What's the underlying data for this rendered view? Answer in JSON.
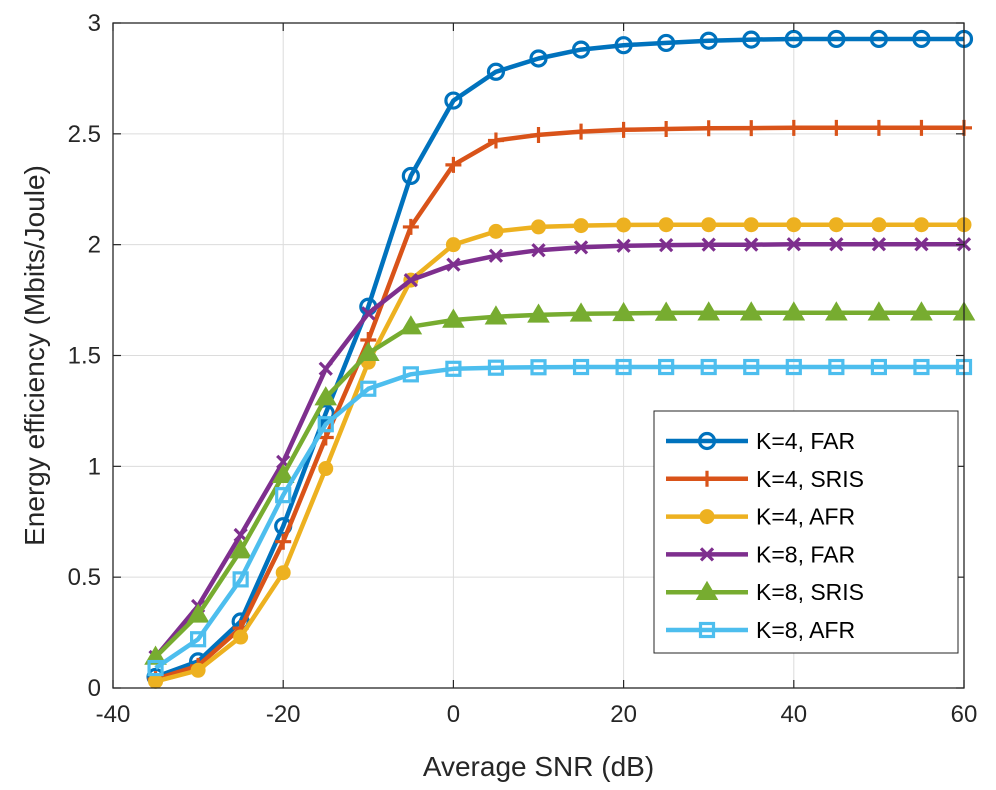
{
  "chart_data": {
    "type": "line",
    "title": "",
    "xlabel": "Average SNR (dB)",
    "ylabel": "Energy efficiency (Mbits/Joule)",
    "xlim": [
      -40,
      60
    ],
    "ylim": [
      0,
      3
    ],
    "xticks": [
      -40,
      -20,
      0,
      20,
      40,
      60
    ],
    "yticks": [
      0,
      0.5,
      1,
      1.5,
      2,
      2.5,
      3
    ],
    "ytick_labels": [
      "0",
      "0.5",
      "1",
      "1.5",
      "2",
      "2.5",
      "3"
    ],
    "grid": true,
    "legend_position": "lower-right",
    "x": [
      -35,
      -30,
      -25,
      -20,
      -15,
      -10,
      -5,
      0,
      5,
      10,
      15,
      20,
      25,
      30,
      35,
      40,
      45,
      50,
      55,
      60
    ],
    "series": [
      {
        "name": "K=4, FAR",
        "color": "#0072BD",
        "marker": "circle",
        "values": [
          0.05,
          0.12,
          0.3,
          0.73,
          1.24,
          1.72,
          2.31,
          2.65,
          2.78,
          2.84,
          2.88,
          2.9,
          2.91,
          2.92,
          2.925,
          2.928,
          2.928,
          2.928,
          2.928,
          2.928
        ]
      },
      {
        "name": "K=4, SRIS",
        "color": "#D95319",
        "marker": "plus",
        "values": [
          0.04,
          0.1,
          0.27,
          0.66,
          1.13,
          1.57,
          2.08,
          2.36,
          2.47,
          2.495,
          2.51,
          2.518,
          2.522,
          2.525,
          2.526,
          2.527,
          2.527,
          2.527,
          2.527,
          2.527
        ]
      },
      {
        "name": "K=4, AFR",
        "color": "#EDB120",
        "marker": "dot",
        "values": [
          0.03,
          0.08,
          0.23,
          0.52,
          0.99,
          1.47,
          1.84,
          2.0,
          2.06,
          2.08,
          2.086,
          2.089,
          2.09,
          2.09,
          2.09,
          2.09,
          2.09,
          2.09,
          2.09,
          2.09
        ]
      },
      {
        "name": "K=8, FAR",
        "color": "#7E2F8E",
        "marker": "x",
        "values": [
          0.14,
          0.37,
          0.69,
          1.02,
          1.44,
          1.69,
          1.84,
          1.91,
          1.95,
          1.975,
          1.988,
          1.995,
          1.998,
          2.0,
          2.0,
          2.002,
          2.002,
          2.002,
          2.002,
          2.002
        ]
      },
      {
        "name": "K=8, SRIS",
        "color": "#77AC30",
        "marker": "triangle",
        "values": [
          0.14,
          0.33,
          0.62,
          0.96,
          1.31,
          1.51,
          1.63,
          1.66,
          1.675,
          1.683,
          1.688,
          1.69,
          1.692,
          1.693,
          1.693,
          1.693,
          1.693,
          1.693,
          1.693,
          1.693
        ]
      },
      {
        "name": "K=8, AFR",
        "color": "#4DBEEE",
        "marker": "square",
        "values": [
          0.09,
          0.22,
          0.49,
          0.87,
          1.19,
          1.35,
          1.415,
          1.44,
          1.445,
          1.447,
          1.448,
          1.448,
          1.448,
          1.448,
          1.448,
          1.448,
          1.448,
          1.448,
          1.448,
          1.448
        ]
      }
    ]
  }
}
